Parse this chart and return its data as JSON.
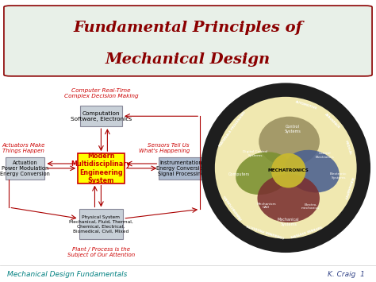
{
  "bg_color": "#f0f5e8",
  "title_line1": "Fundamental Principles of",
  "title_line2": "Mechanical Design",
  "title_color": "#8b0000",
  "title_box_bg": "#e8f0e8",
  "title_box_border": "#8b0000",
  "footer_left": "Mechanical Design Fundamentals",
  "footer_right": "K. Craig  1",
  "footer_color": "#008080",
  "slide_bg": "#ffffff",
  "center_box_bg": "#ffff00",
  "center_box_border": "#cc0000",
  "label_color": "#cc0000",
  "gray_box_bg": "#c8d0d8",
  "blue_box_bg": "#aab8cc",
  "box_border": "#888899",
  "venn_green": "#7a9030",
  "venn_blue": "#4a6090",
  "venn_red": "#7a3030",
  "venn_center": "#c8b830",
  "venn_tan": "#9a9060",
  "ring_dark": "#222222",
  "ring_cream": "#f0e8b0"
}
